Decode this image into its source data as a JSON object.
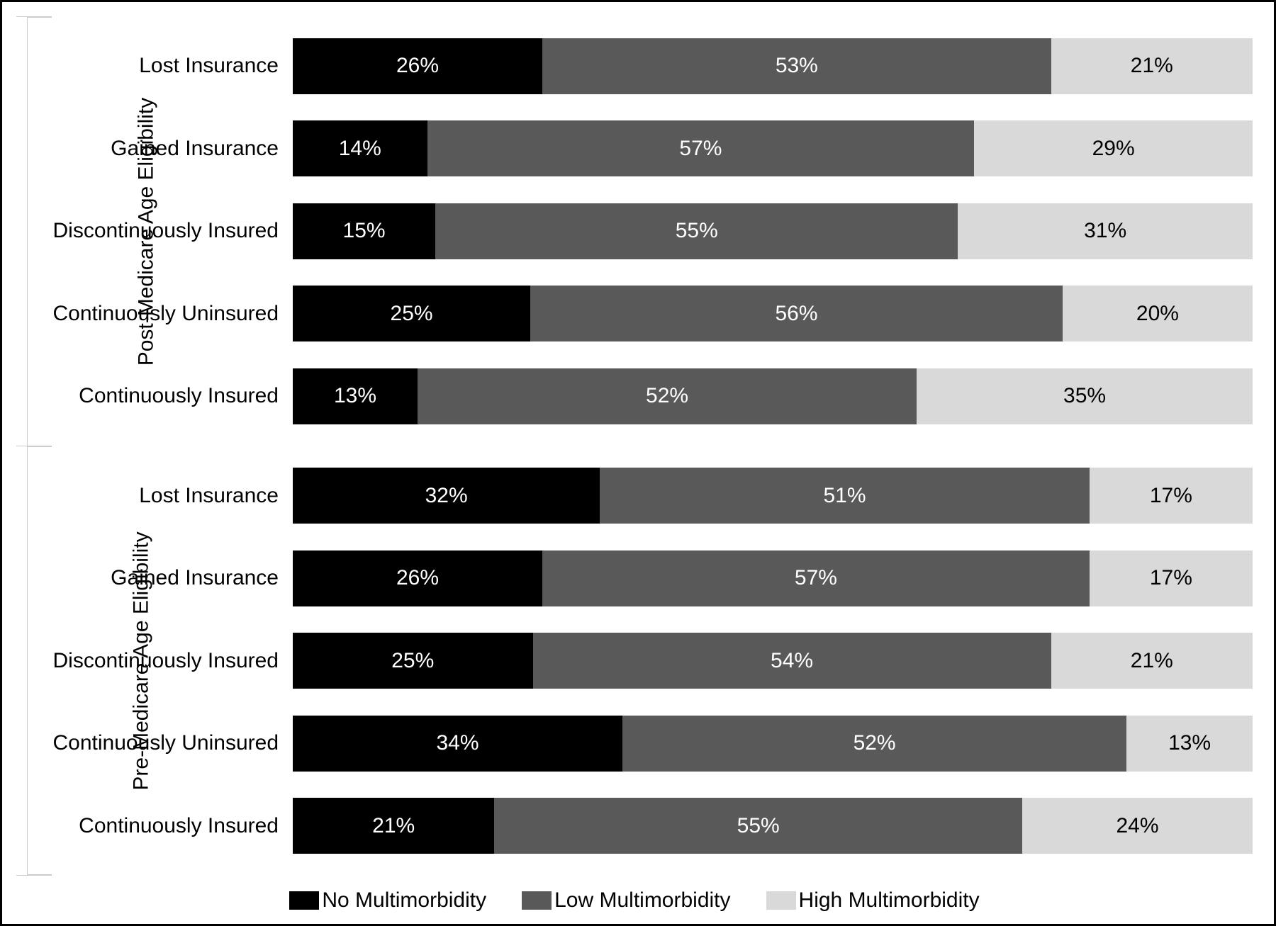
{
  "chart": {
    "type": "stacked-bar-horizontal",
    "background_color": "#ffffff",
    "border_color": "#000000",
    "group_border_color": "#cccccc",
    "label_fontsize": 30,
    "value_fontsize": 30,
    "value_suffix": "%",
    "bar_height_pct": 68,
    "series": [
      {
        "key": "no",
        "label": "No Multimorbidity",
        "color": "#000000",
        "text_color": "#ffffff"
      },
      {
        "key": "low",
        "label": "Low Multimorbidity",
        "color": "#595959",
        "text_color": "#ffffff"
      },
      {
        "key": "high",
        "label": "High Multimorbidity",
        "color": "#d9d9d9",
        "text_color": "#000000"
      }
    ],
    "groups": [
      {
        "label": "Post-Medicare Age Eligibility",
        "rows": [
          {
            "label": "Lost Insurance",
            "values": {
              "no": 26,
              "low": 53,
              "high": 21
            }
          },
          {
            "label": "Gained Insurance",
            "values": {
              "no": 14,
              "low": 57,
              "high": 29
            }
          },
          {
            "label": "Discontinuously Insured",
            "values": {
              "no": 15,
              "low": 55,
              "high": 31
            }
          },
          {
            "label": "Continuously Uninsured",
            "values": {
              "no": 25,
              "low": 56,
              "high": 20
            }
          },
          {
            "label": "Continuously Insured",
            "values": {
              "no": 13,
              "low": 52,
              "high": 35
            }
          }
        ]
      },
      {
        "label": "Pre-Medicare Age Eligibility",
        "rows": [
          {
            "label": "Lost Insurance",
            "values": {
              "no": 32,
              "low": 51,
              "high": 17
            }
          },
          {
            "label": "Gained Insurance",
            "values": {
              "no": 26,
              "low": 57,
              "high": 17
            }
          },
          {
            "label": "Discontinuously Insured",
            "values": {
              "no": 25,
              "low": 54,
              "high": 21
            }
          },
          {
            "label": "Continuously Uninsured",
            "values": {
              "no": 34,
              "low": 52,
              "high": 13
            }
          },
          {
            "label": "Continuously Insured",
            "values": {
              "no": 21,
              "low": 55,
              "high": 24
            }
          }
        ]
      }
    ]
  }
}
